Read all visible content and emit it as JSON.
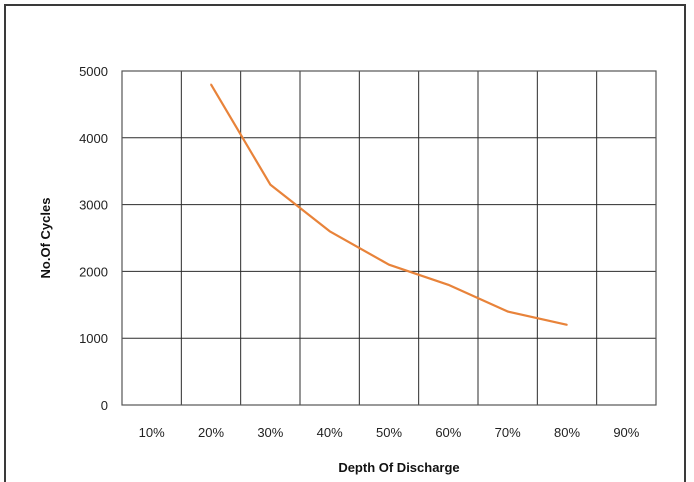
{
  "chart_data": {
    "type": "line",
    "title": "",
    "xlabel": "Depth Of Discharge",
    "ylabel": "No.Of Cycles",
    "categories": [
      "10%",
      "20%",
      "30%",
      "40%",
      "50%",
      "60%",
      "70%",
      "80%",
      "90%"
    ],
    "y_ticks": [
      "0",
      "1000",
      "2000",
      "3000",
      "4000",
      "5000"
    ],
    "ylim": [
      0,
      5000
    ],
    "grid": true,
    "series": [
      {
        "color": "#e8833a",
        "points": [
          {
            "x": 20,
            "y": 4800
          },
          {
            "x": 30,
            "y": 3300
          },
          {
            "x": 40,
            "y": 2600
          },
          {
            "x": 50,
            "y": 2100
          },
          {
            "x": 60,
            "y": 1800
          },
          {
            "x": 70,
            "y": 1400
          },
          {
            "x": 80,
            "y": 1200
          }
        ]
      }
    ]
  }
}
